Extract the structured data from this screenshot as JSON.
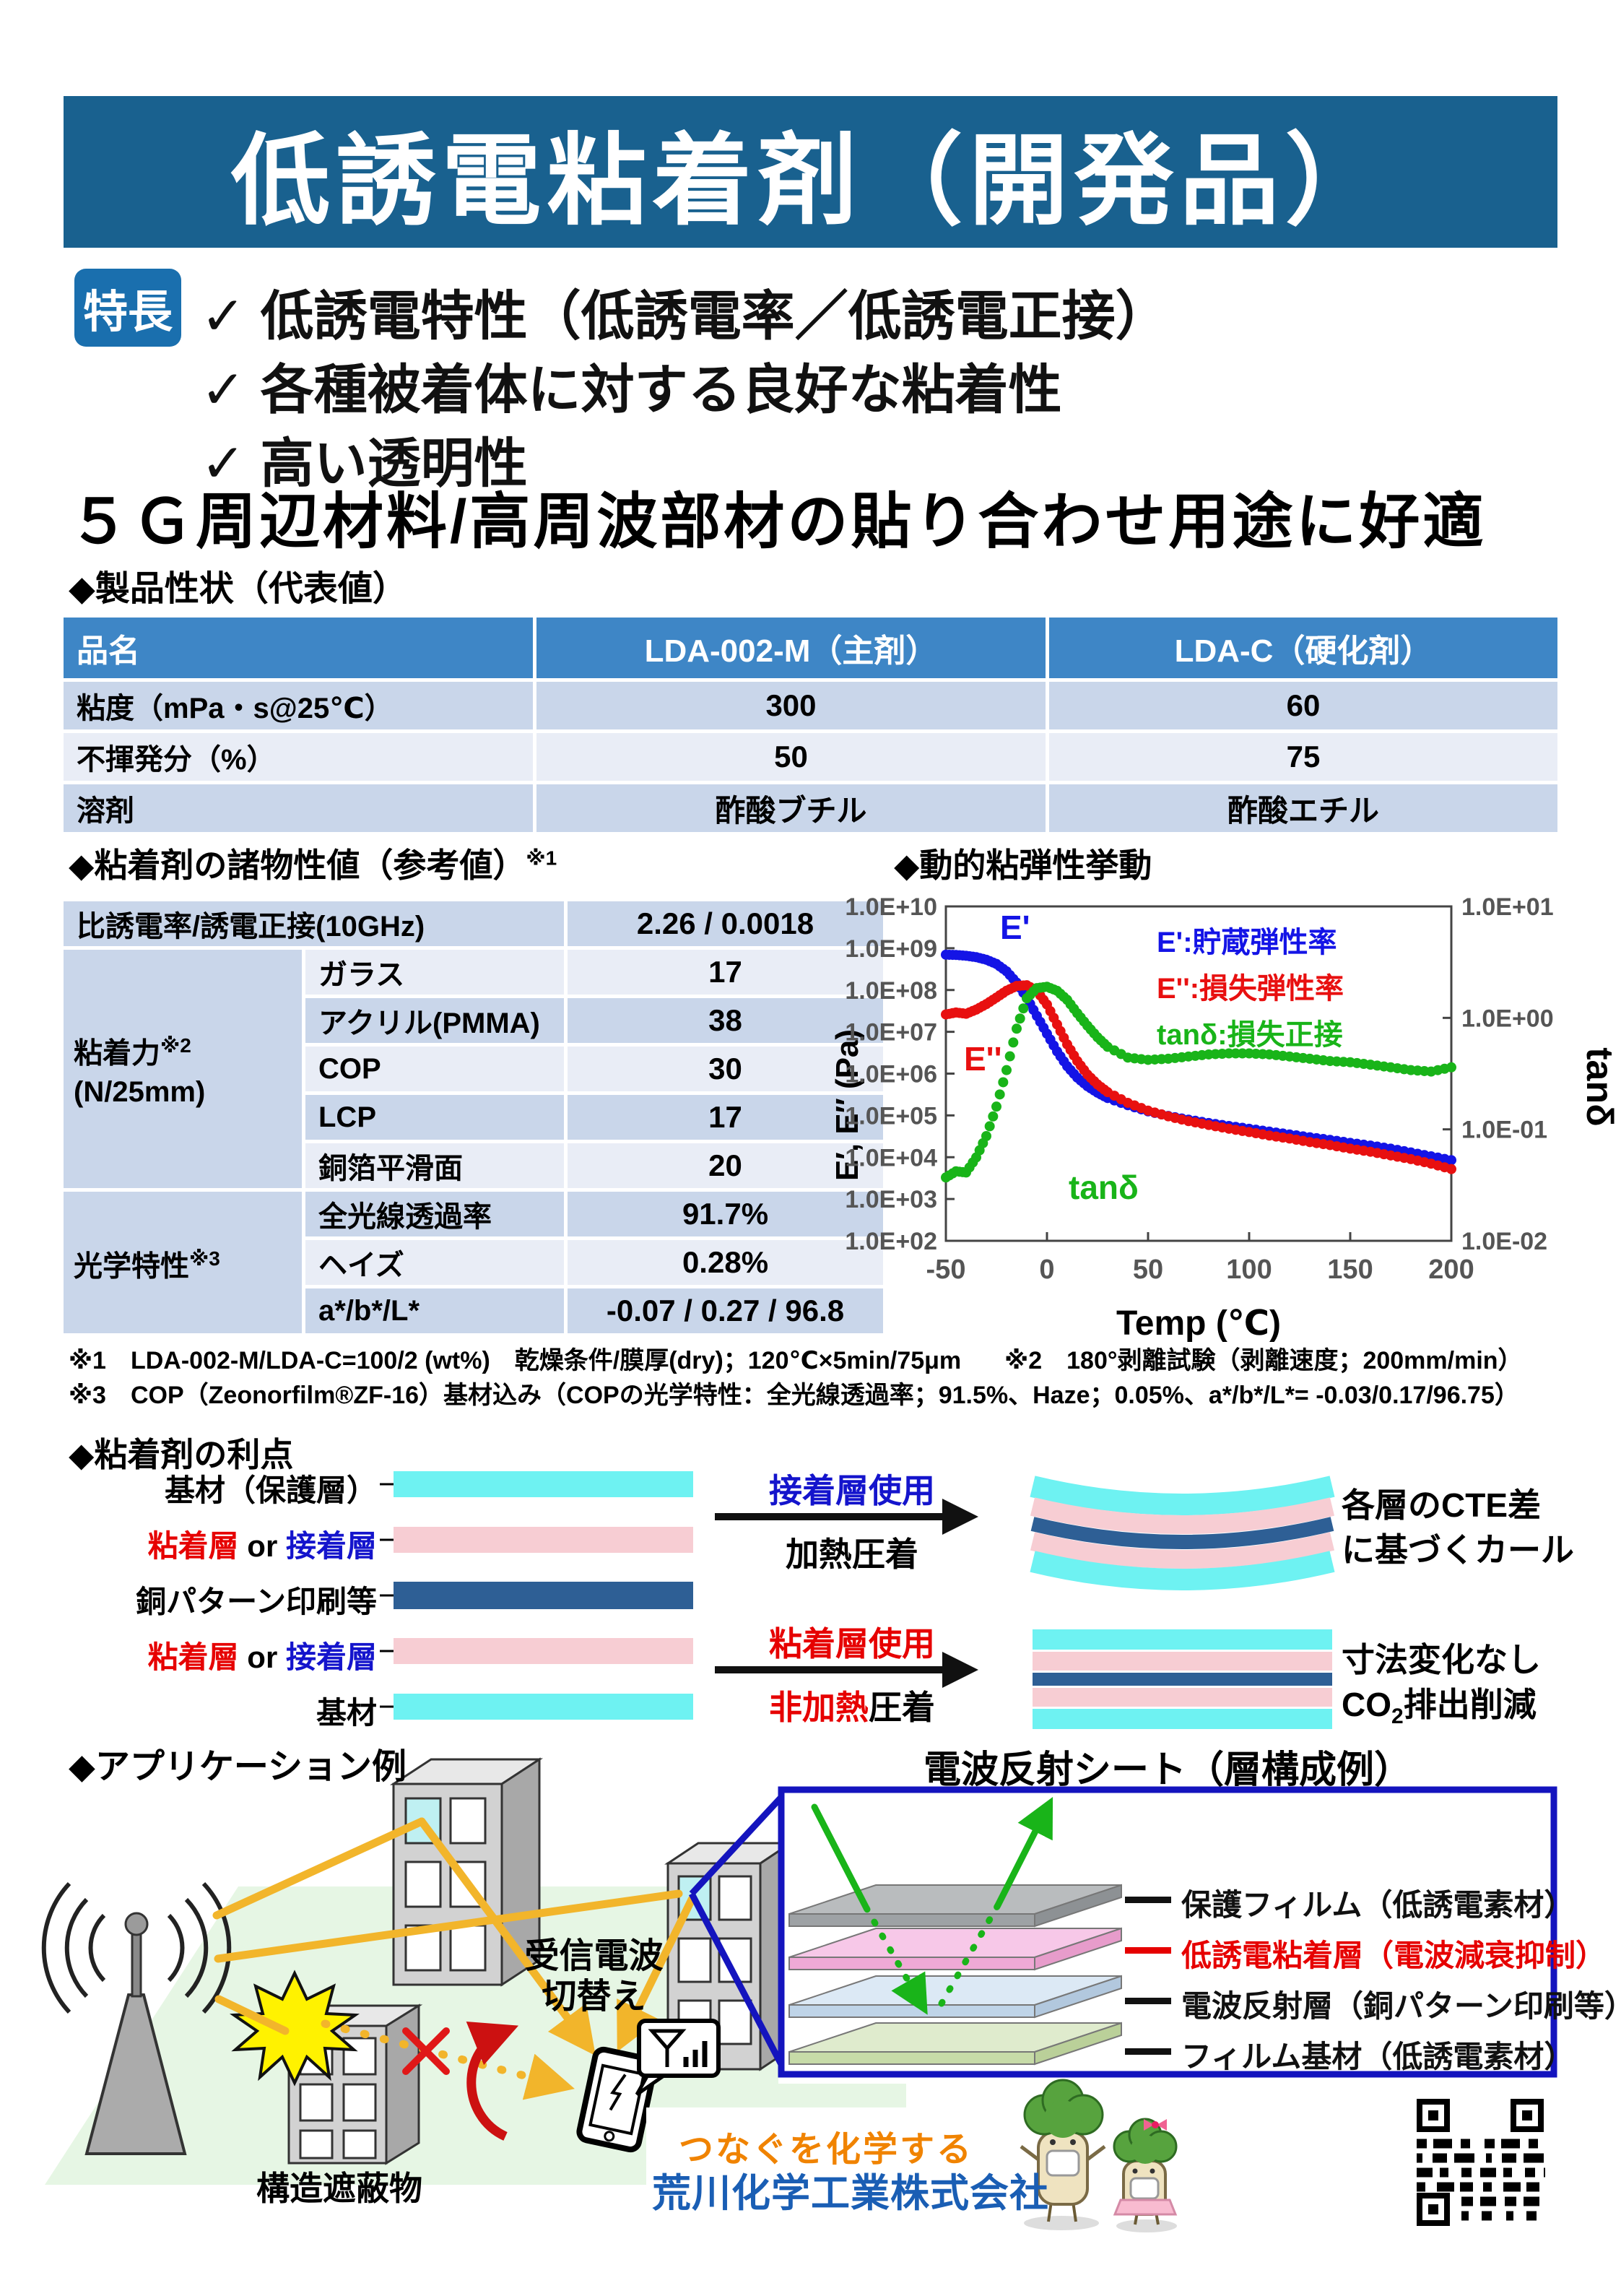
{
  "colors": {
    "banner": "#19618F",
    "badge": "#1A6FAE",
    "table-header": "#3E86C6",
    "row-dark": "#C9D6EA",
    "row-light": "#E9EDF6",
    "cyan": "#6EF2F2",
    "pink": "#F7CDD3",
    "copper": "#2E5F95",
    "blue-text": "#1414CC",
    "red": "#E60000",
    "yellow": "#F2B52B",
    "green-ground": "#E6F6E4",
    "box-blue": "#1414BE",
    "chart-blue": "#1414E6",
    "chart-red": "#E81010",
    "chart-green": "#19B419",
    "orange": "#F08300",
    "company-blue": "#1A5EB4"
  },
  "header": {
    "title": "低誘電粘着剤（開発品）"
  },
  "features": {
    "badge": "特長",
    "check": "✓",
    "items": [
      "低誘電特性（低誘電率／低誘電正接）",
      "各種被着体に対する良好な粘着性",
      "高い透明性"
    ],
    "tagline": "５Ｇ周辺材料/高周波部材の貼り合わせ用途に好適"
  },
  "product_table": {
    "title": "◆製品性状（代表値）",
    "columns": [
      "品名",
      "LDA-002-M（主剤）",
      "LDA-C（硬化剤）"
    ],
    "rows": [
      {
        "label": "粘度（mPa・s@25℃）",
        "main": "300",
        "hardener": "60"
      },
      {
        "label": "不揮発分（%）",
        "main": "50",
        "hardener": "75"
      },
      {
        "label": "溶剤",
        "main": "酢酸ブチル",
        "hardener": "酢酸エチル"
      }
    ]
  },
  "properties_table": {
    "title": "◆粘着剤の諸物性値（参考値）",
    "title_sup": "※1",
    "dielectric": {
      "label": "比誘電率/誘電正接(10GHz)",
      "value": "2.26 / 0.0018"
    },
    "adhesion": {
      "label": "粘着力",
      "sup": "※2",
      "unit": "(N/25mm)",
      "rows": [
        {
          "substrate": "ガラス",
          "value": "17"
        },
        {
          "substrate": "アクリル(PMMA)",
          "value": "38"
        },
        {
          "substrate": "COP",
          "value": "30"
        },
        {
          "substrate": "LCP",
          "value": "17"
        },
        {
          "substrate": "銅箔平滑面",
          "value": "20"
        }
      ]
    },
    "optical": {
      "label": "光学特性",
      "sup": "※3",
      "rows": [
        {
          "property": "全光線透過率",
          "value": "91.7%"
        },
        {
          "property": "ヘイズ",
          "value": "0.28%"
        },
        {
          "property": "a*/b*/L*",
          "value": "-0.07 / 0.27 / 96.8"
        }
      ]
    }
  },
  "footnotes": {
    "note1a": "※1　LDA-002-M/LDA-C=100/2 (wt%)　乾燥条件/膜厚(dry)；120℃×5min/75μm",
    "note1b": "※2　180°剥離試験（剥離速度；200mm/min）",
    "note2": "※3　COP（Zeonorfilm®ZF-16）基材込み（COPの光学特性：全光線透過率；91.5%、Haze；0.05%、a*/b*/L*= -0.03/0.17/96.75）"
  },
  "chart_data": {
    "type": "scatter",
    "title": "◆動的粘弾性挙動",
    "xlabel": "Temp (℃)",
    "ylabel_left": "E′, E″ (Pa)",
    "ylabel_right": "tanδ",
    "xlim": [
      -50,
      200
    ],
    "xticks": [
      -50,
      0,
      50,
      100,
      150,
      200
    ],
    "ylim_left": [
      100.0,
      10000000000.0
    ],
    "yticks_left": [
      "1.0E+10",
      "1.0E+09",
      "1.0E+08",
      "1.0E+07",
      "1.0E+06",
      "1.0E+05",
      "1.0E+04",
      "1.0E+03",
      "1.0E+02"
    ],
    "ylim_right": [
      0.01,
      10
    ],
    "yticks_right": [
      "1.0E+01",
      "1.0E+00",
      "1.0E-01",
      "1.0E-02"
    ],
    "grid": false,
    "legend_position": "top-right",
    "legend": [
      {
        "label": "E':貯蔵弾性率",
        "color": "#1414E6"
      },
      {
        "label": "E'':損失弾性率",
        "color": "#E81010"
      },
      {
        "label": "tanδ:損失正接",
        "color": "#19B419"
      }
    ],
    "annotations": [
      {
        "text": "E'",
        "color": "#1414E6"
      },
      {
        "text": "E''",
        "color": "#E81010"
      },
      {
        "text": "tanδ",
        "color": "#19B419"
      }
    ],
    "series": [
      {
        "name": "E'",
        "axis": "left",
        "color": "#1414E6",
        "x": [
          -50,
          -45,
          -40,
          -35,
          -30,
          -25,
          -20,
          -15,
          -10,
          -5,
          0,
          5,
          10,
          15,
          20,
          25,
          30,
          40,
          50,
          60,
          70,
          80,
          90,
          100,
          110,
          120,
          130,
          140,
          150,
          160,
          170,
          180,
          190,
          200
        ],
        "y": [
          700000000.0,
          690000000.0,
          660000000.0,
          610000000.0,
          530000000.0,
          420000000.0,
          280000000.0,
          150000000.0,
          65000000.0,
          24000000.0,
          9000000.0,
          3400000.0,
          1500000.0,
          800000.0,
          500000.0,
          350000.0,
          260000.0,
          175000.0,
          125000.0,
          97000.0,
          79000.0,
          66000.0,
          56000.0,
          48000.0,
          41000.0,
          35000.0,
          30000.0,
          26000.0,
          22000.0,
          19000.0,
          16000.0,
          13000.0,
          10500.0,
          8500.0
        ]
      },
      {
        "name": "E''",
        "axis": "left",
        "color": "#E81010",
        "x": [
          -50,
          -45,
          -40,
          -35,
          -30,
          -25,
          -20,
          -15,
          -10,
          -5,
          0,
          5,
          10,
          15,
          20,
          25,
          30,
          40,
          50,
          60,
          70,
          80,
          90,
          100,
          110,
          120,
          130,
          140,
          150,
          160,
          170,
          180,
          190,
          200
        ],
        "y": [
          26000000.0,
          29000000.0,
          27000000.0,
          34000000.0,
          46000000.0,
          66000000.0,
          96000000.0,
          125000000.0,
          130000000.0,
          95000000.0,
          45000000.0,
          15000000.0,
          5000000.0,
          2000000.0,
          950000.0,
          550000.0,
          360000.0,
          200000.0,
          130000.0,
          95000.0,
          73000.0,
          59000.0,
          48000.0,
          40000.0,
          33000.0,
          28000.0,
          23000.0,
          19500.0,
          16000.0,
          13500.0,
          11000.0,
          9000.0,
          7000.0,
          5200.0
        ]
      },
      {
        "name": "tanδ",
        "axis": "right",
        "color": "#19B419",
        "x": [
          -50,
          -45,
          -40,
          -35,
          -30,
          -25,
          -20,
          -15,
          -10,
          -5,
          0,
          5,
          10,
          15,
          20,
          25,
          30,
          40,
          50,
          60,
          70,
          80,
          90,
          100,
          110,
          120,
          130,
          140,
          150,
          160,
          170,
          180,
          190,
          200
        ],
        "y": [
          0.037,
          0.042,
          0.041,
          0.056,
          0.087,
          0.16,
          0.34,
          0.8,
          1.5,
          1.85,
          1.9,
          1.75,
          1.45,
          1.1,
          0.85,
          0.67,
          0.55,
          0.44,
          0.42,
          0.43,
          0.45,
          0.47,
          0.48,
          0.48,
          0.47,
          0.45,
          0.43,
          0.41,
          0.4,
          0.38,
          0.36,
          0.34,
          0.33,
          0.36
        ]
      }
    ]
  },
  "benefits": {
    "title": "◆粘着剤の利点",
    "layers": [
      {
        "parts": [
          {
            "t": "基材（保護層）"
          }
        ]
      },
      {
        "parts": [
          {
            "t": "粘着層"
          },
          {
            "t": " or "
          },
          {
            "t": "接着層"
          }
        ]
      },
      {
        "parts": [
          {
            "t": "銅パターン印刷等"
          }
        ]
      },
      {
        "parts": [
          {
            "t": "粘着層"
          },
          {
            "t": " or "
          },
          {
            "t": "接着層"
          }
        ]
      },
      {
        "parts": [
          {
            "t": "基材"
          }
        ]
      }
    ],
    "adhesive_flow": {
      "top": "接着層使用",
      "bottom": "加熱圧着",
      "result_line1": "各層のCTE差",
      "result_line2": "に基づくカール"
    },
    "psa_flow": {
      "top": "粘着層使用",
      "bottom_red": "非加熱",
      "bottom_black": "圧着",
      "result_line1": "寸法変化なし",
      "co2_pre": "CO",
      "co2_sub": "2",
      "co2_post": "排出削減"
    }
  },
  "application": {
    "title": "◆アプリケーション例",
    "switch_line1": "受信電波",
    "switch_line2": "切替え",
    "obstacle_label": "構造遮蔽物"
  },
  "reflect_sheet": {
    "title": "電波反射シート（層構成例）",
    "layers": [
      {
        "label": "保護フィルム（低誘電素材）"
      },
      {
        "label": "低誘電粘着層（電波減衰抑制）"
      },
      {
        "label": "電波反射層（銅パターン印刷等）"
      },
      {
        "label": "フィルム基材（低誘電素材）"
      }
    ]
  },
  "footer": {
    "slogan": "つなぐを化学する",
    "company": "荒川化学工業株式会社"
  }
}
